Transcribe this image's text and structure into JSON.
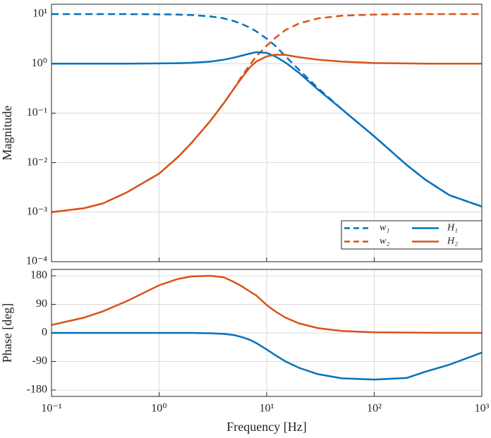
{
  "chart_data": [
    {
      "type": "line",
      "xlog": true,
      "ylog": true,
      "grid": true,
      "show_xticklabels": false,
      "ylabel": "Magnitude",
      "x": [
        0.1,
        0.2,
        0.3,
        0.5,
        1,
        1.5,
        2,
        3,
        4,
        5,
        6,
        7,
        8,
        10,
        12,
        15,
        20,
        30,
        50,
        100,
        200,
        300,
        500,
        1000
      ],
      "xlim": [
        0.1,
        1000
      ],
      "xticks": [
        0.1,
        1,
        10,
        100,
        1000
      ],
      "ylim": [
        0.0001,
        15.85
      ],
      "yticks": [
        {
          "value": 0.0001,
          "label": "10⁻⁴"
        },
        {
          "value": 0.001,
          "label": "10⁻³"
        },
        {
          "value": 0.01,
          "label": "10⁻²"
        },
        {
          "value": 0.1,
          "label": "10⁻¹"
        },
        {
          "value": 1,
          "label": "10⁰"
        },
        {
          "value": 10,
          "label": "10¹"
        }
      ],
      "legend": "lower right",
      "series": [
        {
          "name": "w₁",
          "color": "#0072BD",
          "linestyle": "dashed",
          "values": [
            10,
            10,
            10,
            10,
            9.9,
            9.8,
            9.6,
            9,
            8.2,
            7.2,
            6.2,
            5.3,
            4.5,
            3.2,
            2.3,
            1.4,
            0.75,
            0.32,
            0.12,
            0.034,
            0.009,
            0.0045,
            0.0022,
            0.0013
          ]
        },
        {
          "name": "w₂",
          "color": "#D95319",
          "linestyle": "dashed",
          "values": [
            0.001,
            0.0012,
            0.0015,
            0.0025,
            0.006,
            0.013,
            0.025,
            0.07,
            0.16,
            0.32,
            0.6,
            0.95,
            1.4,
            2.3,
            3.3,
            4.8,
            6.5,
            8.2,
            9.3,
            9.8,
            10,
            10,
            10,
            10
          ]
        },
        {
          "name": "H₁",
          "color": "#0072BD",
          "linestyle": "solid",
          "values": [
            1,
            1,
            1,
            1,
            1.01,
            1.02,
            1.04,
            1.1,
            1.2,
            1.33,
            1.47,
            1.6,
            1.7,
            1.65,
            1.4,
            1.05,
            0.65,
            0.3,
            0.12,
            0.034,
            0.009,
            0.0045,
            0.0022,
            0.0013
          ]
        },
        {
          "name": "H₂",
          "color": "#D95319",
          "linestyle": "solid",
          "values": [
            0.001,
            0.0012,
            0.0015,
            0.0025,
            0.006,
            0.013,
            0.025,
            0.07,
            0.16,
            0.32,
            0.55,
            0.85,
            1.1,
            1.4,
            1.52,
            1.5,
            1.35,
            1.2,
            1.1,
            1.03,
            1.01,
            1,
            1,
            1
          ]
        }
      ]
    },
    {
      "type": "line",
      "xlog": true,
      "ylog": false,
      "grid": true,
      "show_xticklabels": true,
      "ylabel": "Phase [deg]",
      "xlabel": "Frequency [Hz]",
      "x": [
        0.1,
        0.2,
        0.3,
        0.5,
        1,
        1.5,
        2,
        3,
        4,
        5,
        6,
        7,
        8,
        10,
        12,
        15,
        20,
        30,
        50,
        100,
        200,
        300,
        500,
        1000
      ],
      "xlim": [
        0.1,
        1000
      ],
      "xticks": [
        {
          "value": 0.1,
          "label": "10⁻¹"
        },
        {
          "value": 1,
          "label": "10⁰"
        },
        {
          "value": 10,
          "label": "10¹"
        },
        {
          "value": 100,
          "label": "10²"
        },
        {
          "value": 1000,
          "label": "10³"
        }
      ],
      "ylim": [
        -200,
        200
      ],
      "yticks": [
        -180,
        -90,
        0,
        90,
        180
      ],
      "series": [
        {
          "name": "H₁",
          "color": "#0072BD",
          "linestyle": "solid",
          "values": [
            0,
            0,
            0,
            0,
            0,
            0,
            0,
            -1,
            -3,
            -7,
            -14,
            -22,
            -32,
            -52,
            -70,
            -90,
            -110,
            -130,
            -143,
            -147,
            -142,
            -122,
            -100,
            -62
          ]
        },
        {
          "name": "H₂",
          "color": "#D95319",
          "linestyle": "solid",
          "values": [
            25,
            48,
            68,
            100,
            150,
            170,
            178,
            180,
            175,
            160,
            145,
            130,
            118,
            88,
            68,
            48,
            30,
            15,
            6,
            2,
            1,
            0.5,
            0.3,
            0
          ]
        }
      ]
    }
  ]
}
